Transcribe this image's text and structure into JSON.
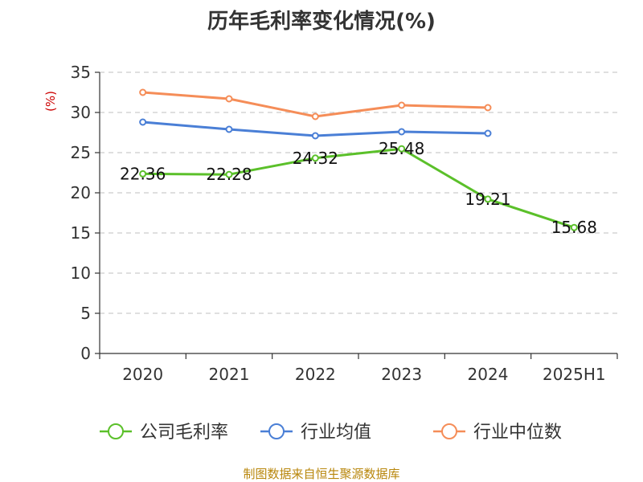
{
  "title": "历年毛利率变化情况(%)",
  "source": "制图数据来自恒生聚源数据库",
  "colors": {
    "grid": "#cccccc",
    "axis": "#333333",
    "ylabel": "#cc0000",
    "source": "#b8860b"
  },
  "chart_data": {
    "type": "line",
    "title": "历年毛利率变化情况(%)",
    "xlabel": "",
    "ylabel": "(%)",
    "categories": [
      "2020",
      "2021",
      "2022",
      "2023",
      "2024",
      "2025H1"
    ],
    "ylim": [
      0,
      35
    ],
    "yticks": [
      0,
      5,
      10,
      15,
      20,
      25,
      30,
      35
    ],
    "grid": "horizontal-dashed",
    "legend_position": "bottom",
    "series": [
      {
        "name": "公司毛利率",
        "color": "#5bc02a",
        "values": [
          22.36,
          22.28,
          24.32,
          25.48,
          19.21,
          15.68
        ],
        "labels": [
          "22.36",
          "22.28",
          "24.32",
          "25.48",
          "19.21",
          "15.68"
        ]
      },
      {
        "name": "行业均值",
        "color": "#4a7fd6",
        "values": [
          28.8,
          27.9,
          27.1,
          27.6,
          27.4,
          null
        ]
      },
      {
        "name": "行业中位数",
        "color": "#f58d58",
        "values": [
          32.5,
          31.7,
          29.5,
          30.9,
          30.6,
          null
        ]
      }
    ]
  }
}
